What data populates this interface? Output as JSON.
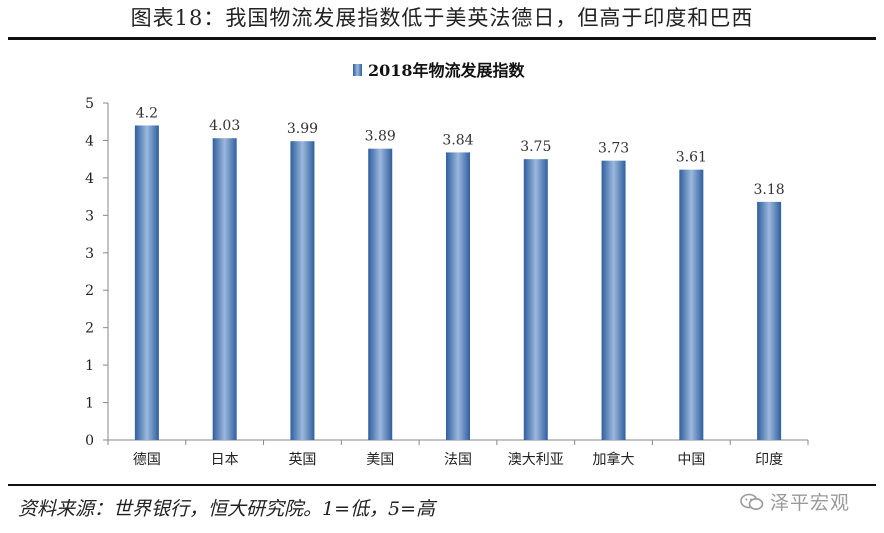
{
  "figure": {
    "title": "图表18：我国物流发展指数低于美英法德日，但高于印度和巴西",
    "source": "资料来源：世界银行，恒大研究院。1=低，5=高",
    "watermark": "泽平宏观",
    "watermark_icon": "wechat-icon"
  },
  "colors": {
    "bar_dark": "#2f5f9e",
    "bar_light": "#9cb8dd",
    "axis": "#888888"
  },
  "chart_data": {
    "type": "bar",
    "legend": "2018年物流发展指数",
    "legend_position": "top-center",
    "categories": [
      "德国",
      "日本",
      "英国",
      "美国",
      "法国",
      "澳大利亚",
      "加拿大",
      "中国",
      "印度"
    ],
    "series": [
      {
        "name": "2018年物流发展指数",
        "values": [
          4.2,
          4.03,
          3.99,
          3.89,
          3.84,
          3.75,
          3.73,
          3.61,
          3.18
        ],
        "labels": [
          "4.2",
          "4.03",
          "3.99",
          "3.89",
          "3.84",
          "3.75",
          "3.73",
          "3.61",
          "3.18"
        ]
      }
    ],
    "yticks": [
      {
        "value": 0,
        "label": "0"
      },
      {
        "value": 0.5,
        "label": "1"
      },
      {
        "value": 1,
        "label": "1"
      },
      {
        "value": 1.5,
        "label": "2"
      },
      {
        "value": 2,
        "label": "2"
      },
      {
        "value": 2.5,
        "label": "3"
      },
      {
        "value": 3,
        "label": "3"
      },
      {
        "value": 3.5,
        "label": "4"
      },
      {
        "value": 4,
        "label": "4"
      },
      {
        "value": 4.5,
        "label": "5"
      }
    ],
    "ylim": [
      0,
      4.5
    ],
    "grid": false
  }
}
